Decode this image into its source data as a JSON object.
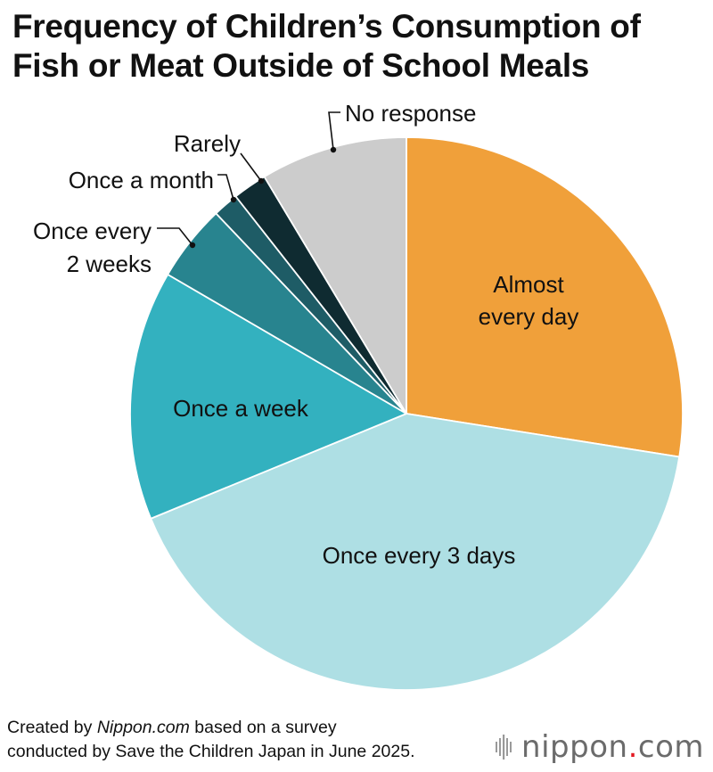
{
  "title_lines": [
    "Frequency of Children’s Consumption of",
    "Fish or Meat Outside of School Meals"
  ],
  "chart_data": {
    "type": "pie",
    "title": "Frequency of Children’s Consumption of Fish or Meat Outside of School Meals",
    "start_angle_deg": 0,
    "direction": "clockwise",
    "slices": [
      {
        "label": "Almost every day",
        "value": 27.5,
        "color": "#f0a03a",
        "label_mode": "inside",
        "label_lines": [
          "Almost",
          "every day"
        ],
        "label_color": "#111111"
      },
      {
        "label": "Once every 3 days",
        "value": 41.3,
        "color": "#aedfe4",
        "label_mode": "inside",
        "label_lines": [
          "Once every 3 days"
        ],
        "label_color": "#111111"
      },
      {
        "label": "Once a week",
        "value": 14.6,
        "color": "#33b1bf",
        "label_mode": "inside",
        "label_lines": [
          "Once a week"
        ],
        "label_color": "#111111"
      },
      {
        "label": "Once every 2 weeks",
        "value": 4.5,
        "color": "#28848f",
        "label_mode": "outside",
        "label_lines": [
          "Once every",
          "2 weeks"
        ]
      },
      {
        "label": "Once a month",
        "value": 1.5,
        "color": "#1e5c66",
        "label_mode": "outside",
        "label_lines": [
          "Once a month"
        ]
      },
      {
        "label": "Rarely",
        "value": 2.0,
        "color": "#0f2b31",
        "label_mode": "outside",
        "label_lines": [
          "Rarely"
        ]
      },
      {
        "label": "No response",
        "value": 8.6,
        "color": "#cccccc",
        "label_mode": "outside",
        "label_lines": [
          "No response"
        ]
      }
    ]
  },
  "footer": {
    "line1_prefix": "Created by ",
    "line1_source": "Nippon.com",
    "line1_suffix": " based on a survey",
    "line2": "conducted by Save the Children Japan in June 2025."
  },
  "logo": {
    "name": "nippon",
    "dot": ".",
    "tld": "com",
    "accent_color": "#e31b23"
  }
}
